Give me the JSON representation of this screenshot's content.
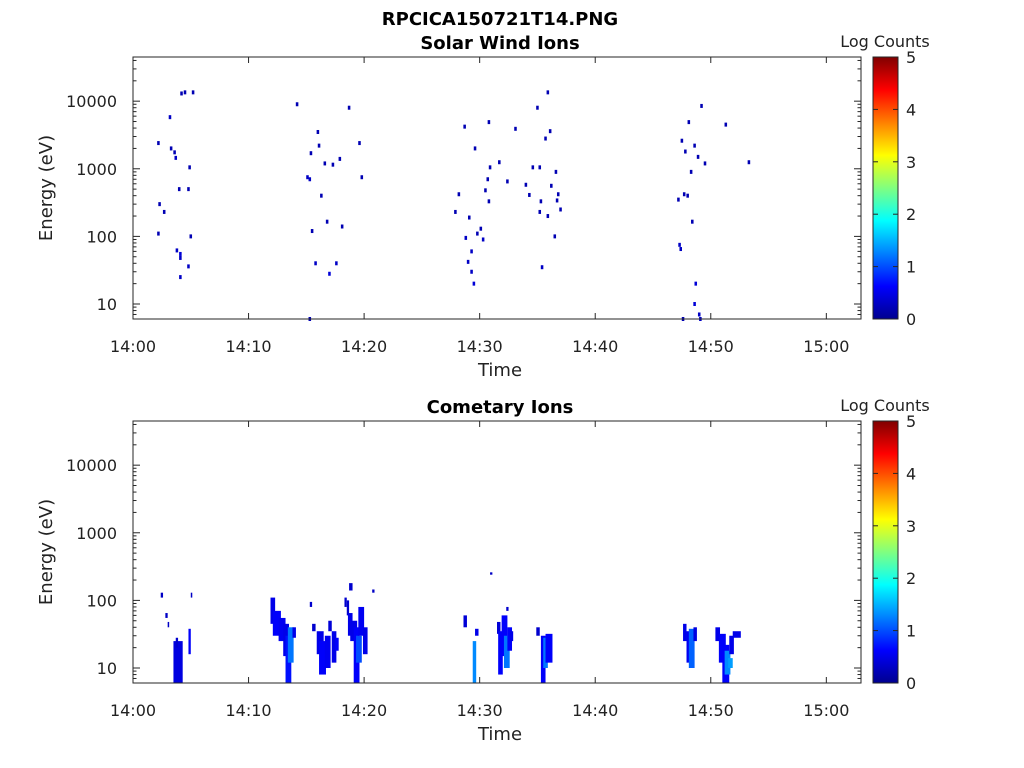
{
  "figure": {
    "title": "RPCICA150721T14.PNG"
  },
  "colors": {
    "background": "#ffffff",
    "axes": "#262626",
    "colormap": [
      "#00008f",
      "#0000ff",
      "#0080ff",
      "#00ffff",
      "#80ff80",
      "#ffff00",
      "#ff8000",
      "#ff0000",
      "#800000"
    ]
  },
  "chart_data": [
    {
      "type": "heatmap",
      "title": "Solar Wind Ions",
      "xlabel": "Time",
      "ylabel": "Energy (eV)",
      "colorbar_label": "Log Counts",
      "x_unit": "minutes after 14:00",
      "xlim": [
        "14:00",
        "15:03"
      ],
      "xticks": [
        "14:00",
        "14:10",
        "14:20",
        "14:30",
        "14:40",
        "14:50",
        "15:00"
      ],
      "y_scale": "log",
      "ylim": [
        6,
        45000
      ],
      "yticks": [
        "10",
        "100",
        "1000",
        "10000"
      ],
      "clim": [
        0,
        5
      ],
      "cticks": [
        "0",
        "1",
        "2",
        "3",
        "4",
        "5"
      ],
      "cell_width_min": 0.22,
      "points": [
        [
          2.2,
          2400,
          0.2
        ],
        [
          2.3,
          300,
          0.2
        ],
        [
          2.2,
          110,
          0.2
        ],
        [
          2.7,
          230,
          0.2
        ],
        [
          3.2,
          5800,
          0.3
        ],
        [
          3.3,
          2000,
          0.2
        ],
        [
          3.6,
          1750,
          0.2
        ],
        [
          3.7,
          1450,
          0.3
        ],
        [
          3.8,
          62,
          0.3
        ],
        [
          4.0,
          500,
          0.2
        ],
        [
          4.1,
          55,
          0.4
        ],
        [
          4.1,
          48,
          0.3
        ],
        [
          4.1,
          25,
          0.3
        ],
        [
          4.2,
          13000,
          0.2
        ],
        [
          4.5,
          13500,
          0.2
        ],
        [
          4.8,
          500,
          0.2
        ],
        [
          4.9,
          1050,
          0.2
        ],
        [
          5.0,
          100,
          0.2
        ],
        [
          5.2,
          13500,
          0.2
        ],
        [
          4.8,
          36,
          0.3
        ],
        [
          14.2,
          9000,
          0.2
        ],
        [
          15.1,
          750,
          0.3
        ],
        [
          15.3,
          700,
          0.3
        ],
        [
          15.4,
          1700,
          0.2
        ],
        [
          15.5,
          120,
          0.2
        ],
        [
          15.8,
          40,
          0.3
        ],
        [
          16.0,
          3500,
          0.2
        ],
        [
          16.1,
          2200,
          0.2
        ],
        [
          16.3,
          400,
          0.2
        ],
        [
          16.6,
          1200,
          0.2
        ],
        [
          16.8,
          165,
          0.2
        ],
        [
          17.0,
          28,
          0.4
        ],
        [
          17.3,
          1150,
          0.2
        ],
        [
          17.6,
          40,
          0.3
        ],
        [
          17.9,
          1400,
          0.2
        ],
        [
          18.1,
          140,
          0.2
        ],
        [
          18.7,
          8000,
          0.2
        ],
        [
          19.6,
          2400,
          0.2
        ],
        [
          19.8,
          750,
          0.2
        ],
        [
          15.3,
          6,
          0.2
        ],
        [
          27.9,
          230,
          0.2
        ],
        [
          28.2,
          420,
          0.2
        ],
        [
          28.7,
          4200,
          0.2
        ],
        [
          28.8,
          95,
          0.3
        ],
        [
          29.0,
          42,
          0.3
        ],
        [
          29.1,
          190,
          0.2
        ],
        [
          29.3,
          60,
          0.3
        ],
        [
          29.3,
          30,
          0.3
        ],
        [
          29.5,
          20,
          0.4
        ],
        [
          29.6,
          2000,
          0.2
        ],
        [
          29.8,
          110,
          0.2
        ],
        [
          30.1,
          130,
          0.2
        ],
        [
          30.3,
          90,
          0.3
        ],
        [
          30.5,
          480,
          0.2
        ],
        [
          30.7,
          700,
          0.2
        ],
        [
          30.8,
          330,
          0.2
        ],
        [
          30.9,
          1050,
          0.2
        ],
        [
          30.8,
          4900,
          0.2
        ],
        [
          31.7,
          1250,
          0.2
        ],
        [
          32.4,
          650,
          0.2
        ],
        [
          33.1,
          3900,
          0.2
        ],
        [
          34.0,
          580,
          0.2
        ],
        [
          34.3,
          410,
          0.2
        ],
        [
          34.6,
          1050,
          0.2
        ],
        [
          35.2,
          1050,
          0.2
        ],
        [
          35.0,
          8000,
          0.2
        ],
        [
          35.2,
          230,
          0.2
        ],
        [
          35.3,
          330,
          0.2
        ],
        [
          35.4,
          35,
          0.3
        ],
        [
          35.7,
          2800,
          0.2
        ],
        [
          35.9,
          200,
          0.2
        ],
        [
          36.1,
          3600,
          0.2
        ],
        [
          35.9,
          13500,
          0.2
        ],
        [
          36.2,
          560,
          0.2
        ],
        [
          36.5,
          100,
          0.2
        ],
        [
          36.6,
          900,
          0.2
        ],
        [
          36.7,
          340,
          0.2
        ],
        [
          36.8,
          420,
          0.2
        ],
        [
          37.0,
          250,
          0.2
        ],
        [
          47.2,
          350,
          0.2
        ],
        [
          47.3,
          75,
          0.3
        ],
        [
          47.4,
          65,
          0.3
        ],
        [
          47.5,
          2600,
          0.2
        ],
        [
          47.7,
          420,
          0.2
        ],
        [
          47.8,
          1800,
          0.2
        ],
        [
          48.0,
          400,
          0.2
        ],
        [
          48.1,
          4900,
          0.2
        ],
        [
          48.3,
          900,
          0.2
        ],
        [
          48.4,
          165,
          0.2
        ],
        [
          48.6,
          2200,
          0.2
        ],
        [
          48.7,
          20,
          0.4
        ],
        [
          48.6,
          10,
          0.4
        ],
        [
          48.9,
          1500,
          0.2
        ],
        [
          49.2,
          8500,
          0.2
        ],
        [
          49.0,
          7,
          0.3
        ],
        [
          49.1,
          6,
          0.3
        ],
        [
          49.5,
          1200,
          0.2
        ],
        [
          51.3,
          4500,
          0.2
        ],
        [
          53.3,
          1250,
          0.2
        ],
        [
          47.6,
          6,
          0.2
        ]
      ]
    },
    {
      "type": "heatmap",
      "title": "Cometary Ions",
      "xlabel": "Time",
      "ylabel": "Energy (eV)",
      "colorbar_label": "Log Counts",
      "x_unit": "minutes after 14:00",
      "xlim": [
        "14:00",
        "15:03"
      ],
      "xticks": [
        "14:00",
        "14:10",
        "14:20",
        "14:30",
        "14:40",
        "14:50",
        "15:00"
      ],
      "y_scale": "log",
      "ylim": [
        6,
        45000
      ],
      "yticks": [
        "10",
        "100",
        "1000",
        "10000"
      ],
      "clim": [
        0,
        5
      ],
      "cticks": [
        "0",
        "1",
        "2",
        "3",
        "4",
        "5"
      ],
      "cell_width_min": 0.22,
      "bands": [
        [
          3.5,
          4.3,
          6,
          25,
          0.45
        ],
        [
          3.7,
          3.9,
          20,
          28,
          0.35
        ],
        [
          2.4,
          2.6,
          110,
          130,
          0.3
        ],
        [
          2.8,
          3.0,
          55,
          65,
          0.3
        ],
        [
          3.0,
          3.1,
          40,
          48,
          0.3
        ],
        [
          4.8,
          5.0,
          16,
          38,
          0.6
        ],
        [
          5.0,
          5.1,
          110,
          130,
          0.3
        ],
        [
          11.9,
          12.3,
          45,
          110,
          0.5
        ],
        [
          12.1,
          12.8,
          30,
          70,
          0.6
        ],
        [
          12.6,
          13.2,
          25,
          55,
          0.55
        ],
        [
          13.0,
          13.5,
          15,
          45,
          0.5
        ],
        [
          13.2,
          13.7,
          6,
          30,
          0.7
        ],
        [
          13.4,
          13.9,
          12,
          40,
          1.2
        ],
        [
          13.8,
          14.1,
          28,
          40,
          0.5
        ],
        [
          15.3,
          15.5,
          80,
          95,
          0.35
        ],
        [
          15.5,
          15.8,
          35,
          45,
          0.35
        ],
        [
          15.9,
          16.5,
          16,
          35,
          0.5
        ],
        [
          16.1,
          16.7,
          8,
          25,
          0.6
        ],
        [
          16.6,
          17.1,
          10,
          30,
          0.55
        ],
        [
          16.9,
          17.2,
          35,
          50,
          0.4
        ],
        [
          17.2,
          17.6,
          12,
          35,
          0.5
        ],
        [
          17.5,
          17.8,
          18,
          28,
          0.6
        ],
        [
          18.3,
          18.5,
          80,
          110,
          0.35
        ],
        [
          18.5,
          18.7,
          60,
          100,
          0.35
        ],
        [
          18.7,
          19.0,
          140,
          180,
          0.35
        ],
        [
          18.6,
          19.0,
          30,
          65,
          0.5
        ],
        [
          18.8,
          19.4,
          25,
          50,
          0.5
        ],
        [
          19.1,
          19.6,
          6,
          40,
          0.6
        ],
        [
          19.3,
          19.8,
          12,
          30,
          1.0
        ],
        [
          19.5,
          20.0,
          30,
          80,
          0.55
        ],
        [
          19.9,
          20.3,
          16,
          40,
          0.5
        ],
        [
          20.7,
          20.9,
          130,
          145,
          0.3
        ],
        [
          28.6,
          28.9,
          40,
          60,
          0.4
        ],
        [
          29.4,
          29.7,
          6,
          25,
          1.3
        ],
        [
          29.6,
          29.9,
          30,
          38,
          0.5
        ],
        [
          30.9,
          31.1,
          240,
          260,
          0.3
        ],
        [
          31.5,
          31.8,
          32,
          48,
          0.4
        ],
        [
          31.6,
          32.0,
          8,
          35,
          0.6
        ],
        [
          31.9,
          32.4,
          15,
          60,
          0.6
        ],
        [
          32.1,
          32.6,
          10,
          30,
          1.2
        ],
        [
          32.4,
          32.8,
          18,
          40,
          0.6
        ],
        [
          32.6,
          32.9,
          25,
          35,
          0.5
        ],
        [
          32.3,
          32.5,
          70,
          80,
          0.35
        ],
        [
          34.9,
          35.2,
          30,
          40,
          0.35
        ],
        [
          35.3,
          35.7,
          6,
          30,
          0.6
        ],
        [
          35.5,
          35.9,
          10,
          28,
          1.2
        ],
        [
          35.7,
          36.3,
          12,
          32,
          0.6
        ],
        [
          47.6,
          47.9,
          25,
          45,
          0.5
        ],
        [
          47.9,
          48.3,
          12,
          35,
          0.55
        ],
        [
          48.1,
          48.6,
          10,
          38,
          1.1
        ],
        [
          48.5,
          48.8,
          25,
          40,
          0.45
        ],
        [
          50.4,
          50.8,
          25,
          40,
          0.5
        ],
        [
          50.7,
          51.3,
          12,
          32,
          0.6
        ],
        [
          51.0,
          51.6,
          6,
          22,
          0.6
        ],
        [
          51.2,
          51.7,
          8,
          18,
          1.3
        ],
        [
          51.6,
          52.0,
          16,
          30,
          0.5
        ],
        [
          51.9,
          52.6,
          28,
          35,
          0.5
        ],
        [
          51.5,
          51.9,
          10,
          14,
          1.4
        ]
      ]
    }
  ]
}
